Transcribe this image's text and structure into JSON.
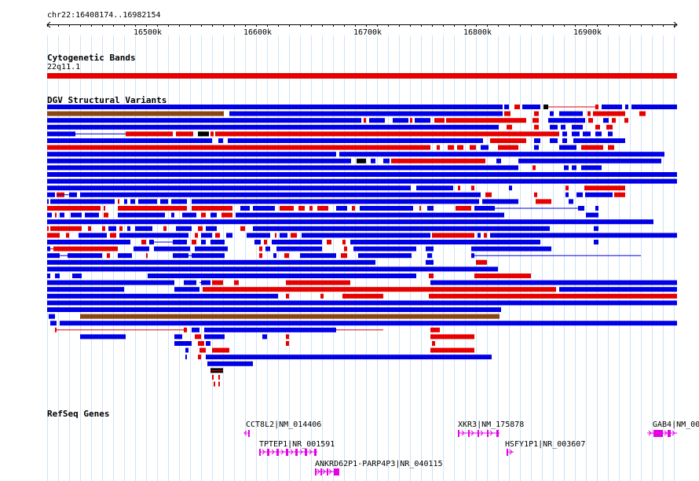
{
  "coordinates": "chr22:16408174..16982154",
  "scale": {
    "ticks": [
      {
        "label": "16500k",
        "pos": 16500000
      },
      {
        "label": "16600k",
        "pos": 16600000
      },
      {
        "label": "16700k",
        "pos": 16700000
      },
      {
        "label": "16800k",
        "pos": 16800000
      },
      {
        "label": "16900k",
        "pos": 16900000
      }
    ]
  },
  "tracks": {
    "cytoband": {
      "title": "Cytogenetic Bands",
      "band": "22q11.1",
      "color": "#e60000"
    },
    "dgv": {
      "title": "DGV Structural Variants",
      "colors": {
        "gain": "#0000e6",
        "loss": "#e60000",
        "both": "#8b4513",
        "other": "#000000"
      }
    },
    "refseq": {
      "title": "RefSeq Genes",
      "color": "#e600e6"
    }
  },
  "genes": [
    {
      "label": "CCT8L2|NM_014406",
      "name": "CCT8L2"
    },
    {
      "label": "TPTEP1|NR_001591",
      "name": "TPTEP1"
    },
    {
      "label": "ANKRD62P1-PARP4P3|NR_040115",
      "name": "ANKRD62P1-PARP4P3"
    },
    {
      "label": "XKR3|NM_175878",
      "name": "XKR3"
    },
    {
      "label": "HSFY1P1|NR_003607",
      "name": "HSFY1P1"
    },
    {
      "label": "GAB4|NM_00",
      "name": "GAB4"
    }
  ]
}
